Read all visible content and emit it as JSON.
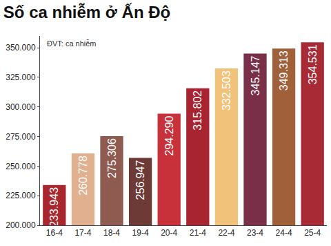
{
  "chart_data": {
    "type": "bar",
    "title": "Số ca nhiễm ở Ấn Độ",
    "annotations": [
      "ĐVT: ca nhiễm"
    ],
    "categories": [
      "16-4",
      "17-4",
      "18-4",
      "19-4",
      "20-4",
      "21-4",
      "22-4",
      "23-4",
      "24-4",
      "25-4"
    ],
    "values": [
      233943,
      260778,
      275306,
      256947,
      294290,
      315802,
      332503,
      345147,
      349313,
      354531
    ],
    "value_labels": [
      "233.943",
      "260.778",
      "275.306",
      "256.947",
      "294.290",
      "315.802",
      "332.503",
      "345.147",
      "349.313",
      "354.531"
    ],
    "colors": [
      "#a8272f",
      "#e0b08f",
      "#8f5a50",
      "#6e3a36",
      "#c8303a",
      "#a82430",
      "#f0c27a",
      "#7a2f48",
      "#a0603a",
      "#a82a35"
    ],
    "ylim": [
      200000,
      360000
    ],
    "yticks": [
      {
        "value": 200000,
        "label": "200.000"
      },
      {
        "value": 225000,
        "label": "225.000"
      },
      {
        "value": 250000,
        "label": "250.000"
      },
      {
        "value": 275000,
        "label": "275.000"
      },
      {
        "value": 300000,
        "label": "300.000"
      },
      {
        "value": 325000,
        "label": "325.000"
      },
      {
        "value": 350000,
        "label": "350.000"
      }
    ],
    "grid": false,
    "data_labels": true
  }
}
